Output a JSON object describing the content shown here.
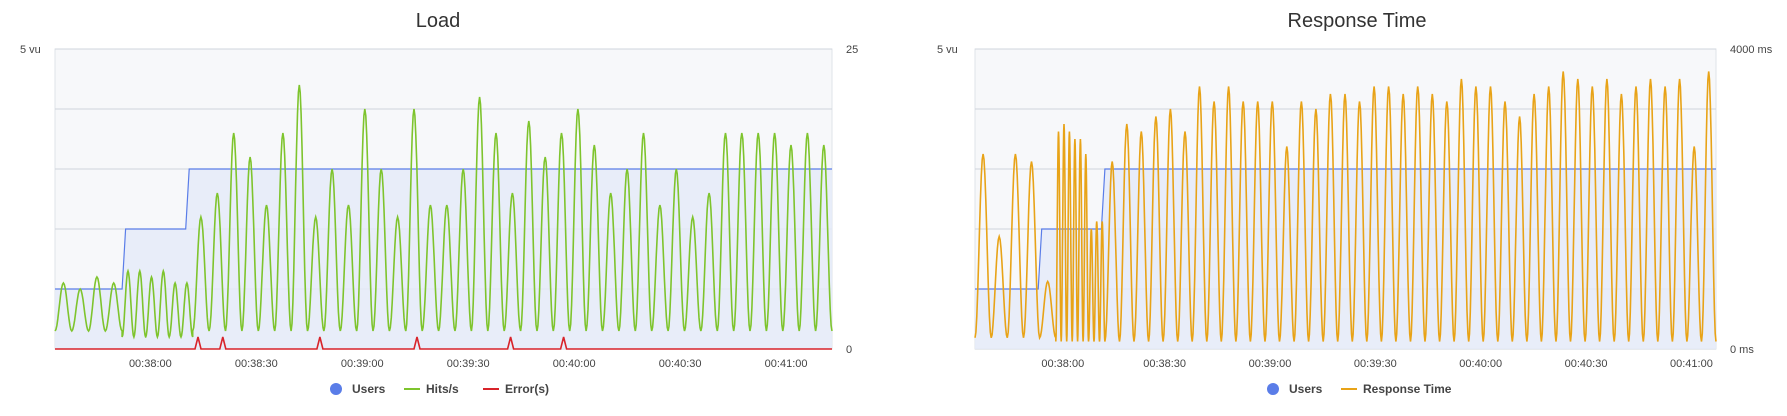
{
  "palette": {
    "users": "#5a7de8",
    "users_fill": "#e5ebf8",
    "hits": "#7ec42d",
    "errors": "#d8232a",
    "response": "#e8a317",
    "grid": "#cfd5dc",
    "plot_bg": "#f7f8fa",
    "text": "#333333",
    "axis_text": "#444444"
  },
  "legend_icons": {
    "users": "dot-marker",
    "line_series": "line-marker"
  },
  "chart_data": [
    {
      "type": "line",
      "title": "Load",
      "time_ticks": [
        "00:38:00",
        "00:38:30",
        "00:39:00",
        "00:39:30",
        "00:40:00",
        "00:40:30",
        "00:41:00"
      ],
      "x_range_s": [
        0,
        220
      ],
      "x_tick_values_s": [
        27,
        57,
        87,
        117,
        147,
        177,
        207
      ],
      "left_axis": {
        "max_label": "5 vu",
        "max": 5
      },
      "right_axis": {
        "max_label": "25",
        "min_label": "0",
        "max": 25
      },
      "grid_lines": 5,
      "legend": [
        {
          "name": "Users",
          "marker": "dot"
        },
        {
          "name": "Hits/s",
          "marker": "line"
        },
        {
          "name": "Error(s)",
          "marker": "line"
        }
      ],
      "series": [
        {
          "name": "Users",
          "axis": "left",
          "step": true,
          "fill": true,
          "points": [
            [
              0,
              1
            ],
            [
              19,
              1
            ],
            [
              20,
              2
            ],
            [
              37,
              2
            ],
            [
              38,
              3
            ],
            [
              40,
              3
            ],
            [
              40.5,
              3
            ],
            [
              220,
              3
            ]
          ]
        },
        {
          "name": "Hits/s",
          "axis": "right",
          "shape": "oscillating",
          "segments": [
            {
              "from": 0,
              "to": 19,
              "period": 4.2,
              "low": 1.5,
              "high": [
                5.5,
                5.0,
                6.0,
                5.5
              ]
            },
            {
              "from": 19,
              "to": 39,
              "period": 2.1,
              "low": 1.0,
              "high": [
                6.5,
                6.5,
                6.0,
                6.5,
                5.5,
                5.5
              ]
            },
            {
              "from": 39,
              "to": 220,
              "period": 4.7,
              "low": 1.5,
              "high": [
                11,
                13,
                18,
                16,
                12,
                18,
                22,
                11,
                15,
                12,
                20,
                15,
                11,
                20,
                12,
                12,
                15,
                21,
                18,
                13,
                19,
                16,
                18,
                20,
                17,
                13,
                15,
                18,
                12,
                15,
                11,
                13,
                18,
                18,
                18,
                18,
                17,
                18,
                17
              ]
            }
          ]
        },
        {
          "name": "Error(s)",
          "axis": "right",
          "shape": "spikes",
          "spikes": [
            [
              40.5,
              1
            ],
            [
              47.5,
              1
            ],
            [
              75,
              1
            ],
            [
              102.5,
              1
            ],
            [
              129,
              1
            ],
            [
              144,
              1
            ]
          ]
        }
      ]
    },
    {
      "type": "line",
      "title": "Response Time",
      "time_ticks": [
        "00:38:00",
        "00:38:30",
        "00:39:00",
        "00:39:30",
        "00:40:00",
        "00:40:30",
        "00:41:00"
      ],
      "x_range_s": [
        0,
        211
      ],
      "x_tick_values_s": [
        25,
        54,
        84,
        114,
        144,
        174,
        204
      ],
      "left_axis": {
        "max_label": "5 vu",
        "max": 5
      },
      "right_axis": {
        "max_label": "4000 ms",
        "min_label": "0 ms",
        "max": 4000
      },
      "grid_lines": 5,
      "legend": [
        {
          "name": "Users",
          "marker": "dot"
        },
        {
          "name": "Response Time",
          "marker": "line"
        }
      ],
      "series": [
        {
          "name": "Users",
          "axis": "left",
          "step": true,
          "fill": true,
          "points": [
            [
              0,
              1
            ],
            [
              18,
              1
            ],
            [
              19,
              2
            ],
            [
              36,
              2
            ],
            [
              37,
              3
            ],
            [
              211,
              3
            ]
          ]
        },
        {
          "name": "Response Time",
          "axis": "right",
          "shape": "oscillating",
          "segments": [
            {
              "from": 0,
              "to": 23,
              "period": 4.6,
              "low": 150,
              "high": [
                2600,
                1500,
                2600,
                2500,
                900
              ]
            },
            {
              "from": 23,
              "to": 37,
              "period": 1.6,
              "low": 100,
              "high": [
                2900,
                3000,
                2900,
                2800,
                2800,
                2600,
                1600,
                1700,
                1700
              ]
            },
            {
              "from": 37,
              "to": 211,
              "period": 4.7,
              "low": 100,
              "high": [
                2500,
                3000,
                2900,
                3100,
                3200,
                2900,
                3500,
                3300,
                3500,
                3300,
                3300,
                3300,
                2700,
                3300,
                3200,
                3400,
                3400,
                3300,
                3500,
                3500,
                3400,
                3500,
                3400,
                3300,
                3600,
                3500,
                3500,
                3300,
                3100,
                3400,
                3500,
                3700,
                3600,
                3500,
                3600,
                3400,
                3500,
                3600,
                3500,
                3600,
                2700,
                3700
              ]
            }
          ]
        }
      ]
    }
  ]
}
